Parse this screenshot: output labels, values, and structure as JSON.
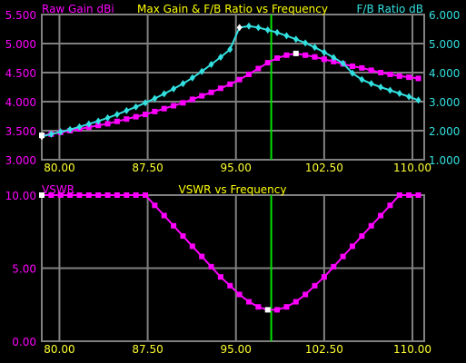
{
  "colors": {
    "background": "#000000",
    "grid": "#808080",
    "marker_line": "#00e000",
    "gain": "#ff00ff",
    "fb": "#33e0e0",
    "title": "#ffff00",
    "x_tick": "#ffff33",
    "highlight": "#ffffff"
  },
  "chart_data": [
    {
      "type": "line",
      "title": "Max Gain & F/B Ratio vs Frequency",
      "ylabel_left": "Raw Gain dBi",
      "ylabel_right": "F/B Ratio dB",
      "xlim": [
        78.5,
        111
      ],
      "x_ticks": [
        80.0,
        87.5,
        95.0,
        102.5,
        110.0
      ],
      "x_tick_labels": [
        "80.00",
        "87.50",
        "95.00",
        "102.50",
        "110.00"
      ],
      "ylim_left": [
        3.0,
        5.5
      ],
      "y_ticks_left": [
        3.0,
        3.5,
        4.0,
        4.5,
        5.0,
        5.5
      ],
      "y_tick_labels_left": [
        "3.000",
        "3.500",
        "4.000",
        "4.500",
        "5.000",
        "5.500"
      ],
      "ylim_right": [
        1.0,
        6.0
      ],
      "y_ticks_right": [
        1,
        2,
        3,
        4,
        5,
        6
      ],
      "y_tick_labels_right": [
        "1.000",
        "2.000",
        "3.000",
        "4.000",
        "5.000",
        "6.000"
      ],
      "grid": true,
      "marker_x": 98.0,
      "series": [
        {
          "name": "Raw Gain dBi",
          "axis": "left",
          "marker": "square",
          "x": [
            78.5,
            79.3,
            80.1,
            80.9,
            81.7,
            82.5,
            83.3,
            84.1,
            84.9,
            85.7,
            86.5,
            87.3,
            88.1,
            88.9,
            89.7,
            90.5,
            91.3,
            92.1,
            92.9,
            93.7,
            94.5,
            95.3,
            96.1,
            96.9,
            97.7,
            98.5,
            99.3,
            100.1,
            100.9,
            101.7,
            102.5,
            103.3,
            104.1,
            104.9,
            105.7,
            106.5,
            107.3,
            108.1,
            108.9,
            109.7,
            110.5
          ],
          "y": [
            3.42,
            3.44,
            3.47,
            3.5,
            3.53,
            3.56,
            3.59,
            3.62,
            3.66,
            3.7,
            3.74,
            3.78,
            3.83,
            3.88,
            3.93,
            3.98,
            4.04,
            4.1,
            4.16,
            4.23,
            4.3,
            4.38,
            4.47,
            4.57,
            4.67,
            4.75,
            4.8,
            4.83,
            4.8,
            4.77,
            4.73,
            4.69,
            4.65,
            4.61,
            4.58,
            4.54,
            4.5,
            4.47,
            4.44,
            4.42,
            4.4
          ]
        },
        {
          "name": "F/B Ratio dB",
          "axis": "right",
          "marker": "diamond",
          "x": [
            78.5,
            79.3,
            80.1,
            80.9,
            81.7,
            82.5,
            83.3,
            84.1,
            84.9,
            85.7,
            86.5,
            87.3,
            88.1,
            88.9,
            89.7,
            90.5,
            91.3,
            92.1,
            92.9,
            93.7,
            94.5,
            95.3,
            96.1,
            96.9,
            97.7,
            98.5,
            99.3,
            100.1,
            100.9,
            101.7,
            102.5,
            103.3,
            104.1,
            104.9,
            105.7,
            106.5,
            107.3,
            108.1,
            108.9,
            109.7,
            110.5
          ],
          "y": [
            1.8,
            1.88,
            1.96,
            2.04,
            2.13,
            2.23,
            2.33,
            2.44,
            2.56,
            2.69,
            2.82,
            2.96,
            3.11,
            3.27,
            3.44,
            3.62,
            3.82,
            4.04,
            4.28,
            4.53,
            4.8,
            5.55,
            5.6,
            5.55,
            5.47,
            5.38,
            5.27,
            5.15,
            5.02,
            4.87,
            4.7,
            4.52,
            4.32,
            3.98,
            3.76,
            3.62,
            3.5,
            3.39,
            3.28,
            3.17,
            3.05
          ]
        }
      ]
    },
    {
      "type": "line",
      "title": "VSWR vs Frequency",
      "ylabel": "VSWR",
      "xlim": [
        78.5,
        111
      ],
      "x_ticks": [
        80.0,
        87.5,
        95.0,
        102.5,
        110.0
      ],
      "x_tick_labels": [
        "80.00",
        "87.50",
        "95.00",
        "102.50",
        "110.00"
      ],
      "ylim": [
        0,
        10
      ],
      "y_ticks": [
        0,
        5,
        10
      ],
      "y_tick_labels": [
        "0.00",
        "5.00",
        "10.00"
      ],
      "grid": true,
      "marker_x": 98.0,
      "series": [
        {
          "name": "VSWR",
          "marker": "square",
          "x": [
            78.5,
            79.3,
            80.1,
            80.9,
            81.7,
            82.5,
            83.3,
            84.1,
            84.9,
            85.7,
            86.5,
            87.3,
            88.1,
            88.9,
            89.7,
            90.5,
            91.3,
            92.1,
            92.9,
            93.7,
            94.5,
            95.3,
            96.1,
            96.9,
            97.7,
            98.5,
            99.3,
            100.1,
            100.9,
            101.7,
            102.5,
            103.3,
            104.1,
            104.9,
            105.7,
            106.5,
            107.3,
            108.1,
            108.9,
            109.7,
            110.5
          ],
          "y": [
            10,
            10,
            10,
            10,
            10,
            10,
            10,
            10,
            10,
            10,
            10,
            10,
            9.3,
            8.6,
            7.9,
            7.2,
            6.5,
            5.8,
            5.1,
            4.4,
            3.8,
            3.2,
            2.7,
            2.35,
            2.15,
            2.15,
            2.35,
            2.7,
            3.2,
            3.8,
            4.4,
            5.1,
            5.8,
            6.5,
            7.2,
            7.9,
            8.6,
            9.3,
            10,
            10,
            10
          ]
        }
      ]
    }
  ]
}
